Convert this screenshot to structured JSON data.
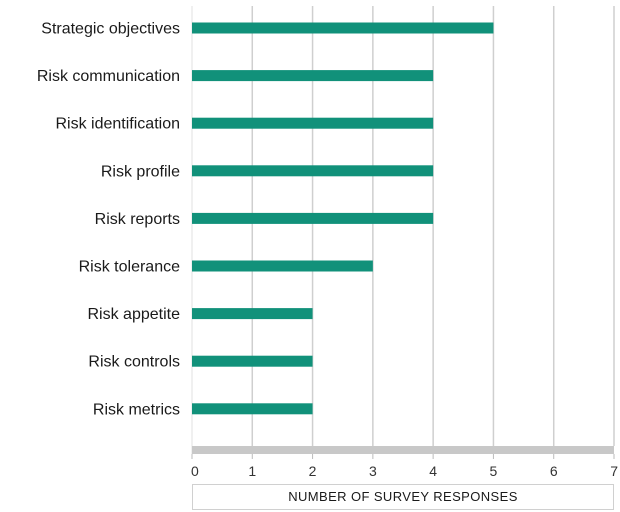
{
  "chart_data": {
    "type": "bar",
    "orientation": "horizontal",
    "categories": [
      "Strategic objectives",
      "Risk communication",
      "Risk identification",
      "Risk profile",
      "Risk reports",
      "Risk tolerance",
      "Risk appetite",
      "Risk controls",
      "Risk metrics"
    ],
    "values": [
      5,
      4,
      4,
      4,
      4,
      3,
      2,
      2,
      2
    ],
    "xlabel": "NUMBER OF SURVEY RESPONSES",
    "ylabel": "",
    "xlim": [
      0,
      7
    ],
    "xticks": [
      "0",
      "1",
      "2",
      "3",
      "4",
      "5",
      "6",
      "7"
    ],
    "grid": true,
    "colors": {
      "bar": "#11917a",
      "grid": "#cfcfcf",
      "baseline": "#c8c8c8"
    }
  }
}
